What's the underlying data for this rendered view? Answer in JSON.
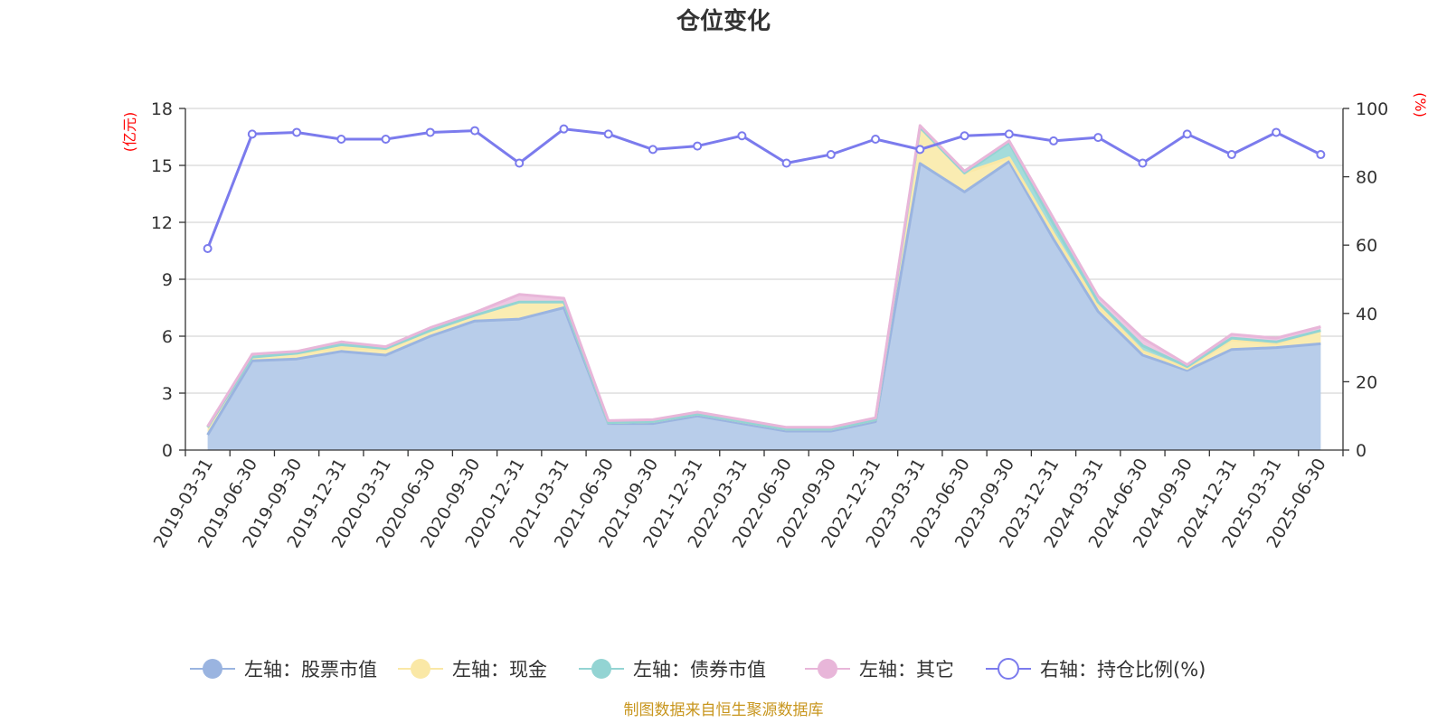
{
  "chart_data": {
    "type": "area",
    "title": "仓位变化",
    "source": "制图数据来自恒生聚源数据库",
    "left_unit": "(亿元)",
    "right_unit": "(%)",
    "categories": [
      "2019-03-31",
      "2019-06-30",
      "2019-09-30",
      "2019-12-31",
      "2020-03-31",
      "2020-06-30",
      "2020-09-30",
      "2020-12-31",
      "2021-03-31",
      "2021-06-30",
      "2021-09-30",
      "2021-12-31",
      "2022-03-31",
      "2022-06-30",
      "2022-09-30",
      "2022-12-31",
      "2023-03-31",
      "2023-06-30",
      "2023-09-30",
      "2023-12-31",
      "2024-03-31",
      "2024-06-30",
      "2024-09-30",
      "2024-12-31",
      "2025-03-31",
      "2025-06-30"
    ],
    "ylim_left": [
      0,
      18
    ],
    "yticks_left": [
      0,
      3,
      6,
      9,
      12,
      15,
      18
    ],
    "ylim_right": [
      0,
      100
    ],
    "yticks_right": [
      0,
      20,
      40,
      60,
      80,
      100
    ],
    "grid": true,
    "legend_position": "bottom",
    "stacked": true,
    "series": [
      {
        "name": "左轴：股票市值",
        "axis": "left",
        "color": "#9ab4e0",
        "fill": "#b8cdea",
        "values": [
          0.8,
          4.7,
          4.8,
          5.2,
          5.0,
          6.0,
          6.8,
          6.9,
          7.5,
          1.4,
          1.4,
          1.8,
          1.4,
          1.0,
          1.0,
          1.5,
          15.1,
          13.6,
          15.2,
          11.1,
          7.3,
          5.0,
          4.2,
          5.3,
          5.4,
          5.6
        ]
      },
      {
        "name": "左轴：现金",
        "axis": "left",
        "color": "#fae8a6",
        "fill": "#faecb2",
        "values": [
          0.4,
          0.2,
          0.3,
          0.2,
          0.3,
          0.3,
          0.3,
          0.9,
          0.3,
          0.05,
          0.1,
          0.1,
          0.1,
          0.1,
          0.1,
          0.1,
          1.9,
          1.0,
          0.2,
          0.3,
          0.3,
          0.2,
          0.1,
          0.5,
          0.2,
          0.7
        ]
      },
      {
        "name": "左轴：债券市值",
        "axis": "left",
        "color": "#93d4d3",
        "fill": "#a4dcdb",
        "values": [
          0.0,
          0.0,
          0.0,
          0.15,
          0.05,
          0.0,
          0.0,
          0.0,
          0.0,
          0.0,
          0.0,
          0.0,
          0.0,
          0.0,
          0.0,
          0.0,
          0.0,
          0.0,
          0.8,
          0.5,
          0.2,
          0.3,
          0.1,
          0.1,
          0.1,
          0.0
        ]
      },
      {
        "name": "左轴：其它",
        "axis": "left",
        "color": "#e8b6d9",
        "fill": "#eec6e2",
        "values": [
          0.05,
          0.15,
          0.1,
          0.15,
          0.1,
          0.15,
          0.15,
          0.4,
          0.2,
          0.1,
          0.1,
          0.1,
          0.1,
          0.1,
          0.1,
          0.1,
          0.1,
          0.1,
          0.1,
          0.3,
          0.3,
          0.4,
          0.1,
          0.2,
          0.2,
          0.2
        ]
      },
      {
        "name": "右轴：持仓比例(%)",
        "axis": "right",
        "color": "#7b7bed",
        "values": [
          59,
          92.5,
          93,
          91,
          91,
          93,
          93.5,
          84,
          94,
          92.5,
          88,
          89,
          92,
          84,
          86.5,
          91,
          88,
          92,
          92.5,
          90.5,
          91.5,
          84,
          92.5,
          86.5,
          93,
          86.5
        ]
      }
    ]
  }
}
